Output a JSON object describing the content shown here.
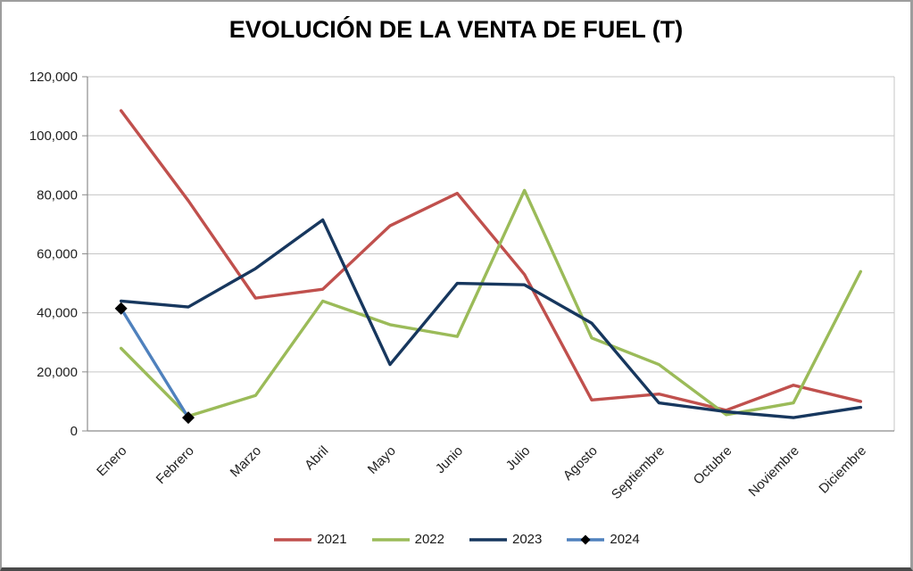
{
  "window": {
    "background": "#ffffff",
    "border_color": "#9d9d9d"
  },
  "chart_data": {
    "type": "line",
    "title": "EVOLUCIÓN DE LA VENTA DE FUEL (T)",
    "categories": [
      "Enero",
      "Febrero",
      "Marzo",
      "Abril",
      "Mayo",
      "Junio",
      "Julio",
      "Agosto",
      "Septiembre",
      "Octubre",
      "Noviembre",
      "Diciembre"
    ],
    "series": [
      {
        "name": "2021",
        "color": "#C0504D",
        "marker": "none",
        "values": [
          108500,
          78000,
          45000,
          48000,
          69500,
          80500,
          53000,
          10500,
          12500,
          7000,
          15500,
          10000
        ]
      },
      {
        "name": "2022",
        "color": "#9BBB59",
        "marker": "none",
        "values": [
          28000,
          5000,
          12000,
          44000,
          36000,
          32000,
          81500,
          31500,
          22500,
          5500,
          9500,
          54000
        ]
      },
      {
        "name": "2023",
        "color": "#17375E",
        "marker": "none",
        "values": [
          44000,
          42000,
          55000,
          71500,
          22500,
          50000,
          49500,
          36500,
          9500,
          6500,
          4500,
          8000
        ]
      },
      {
        "name": "2024",
        "color": "#4F81BD",
        "marker": "diamond",
        "marker_color": "#000000",
        "values": [
          41500,
          4500
        ]
      }
    ],
    "ylim": [
      0,
      120000
    ],
    "ytick_step": 20000,
    "ytick_labels": [
      "0",
      "20,000",
      "40,000",
      "60,000",
      "80,000",
      "100,000",
      "120,000"
    ],
    "grid": true,
    "legend_position": "bottom",
    "gridline_color": "#C6C6C6",
    "axis_color": "#8C8C8C",
    "tick_label_color": "#1F1F1F",
    "xlabel": "",
    "ylabel": ""
  }
}
